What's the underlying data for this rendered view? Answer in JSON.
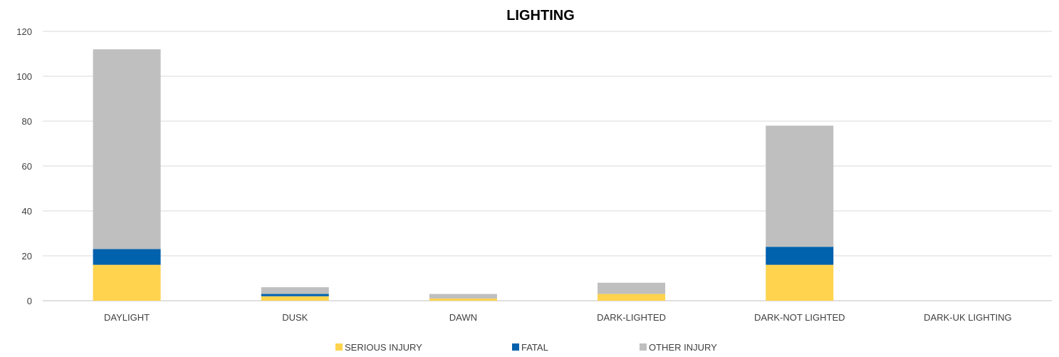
{
  "chart_data": {
    "type": "bar",
    "stacked": true,
    "title": "LIGHTING",
    "xlabel": "",
    "ylabel": "",
    "categories": [
      "DAYLIGHT",
      "DUSK",
      "DAWN",
      "DARK-LIGHTED",
      "DARK-NOT LIGHTED",
      "DARK-UK LIGHTING"
    ],
    "series": [
      {
        "name": "SERIOUS INJURY",
        "color": "#ffd34e",
        "values": [
          16,
          2,
          1,
          3,
          16,
          0
        ]
      },
      {
        "name": "FATAL",
        "color": "#0061ad",
        "values": [
          7,
          1,
          0,
          0,
          8,
          0
        ]
      },
      {
        "name": "OTHER INJURY",
        "color": "#bfbfbf",
        "values": [
          89,
          3,
          2,
          5,
          54,
          0
        ]
      }
    ],
    "ylim": [
      0,
      120
    ],
    "yticks": [
      0,
      20,
      40,
      60,
      80,
      100,
      120
    ],
    "grid": true,
    "legend_position": "bottom"
  }
}
